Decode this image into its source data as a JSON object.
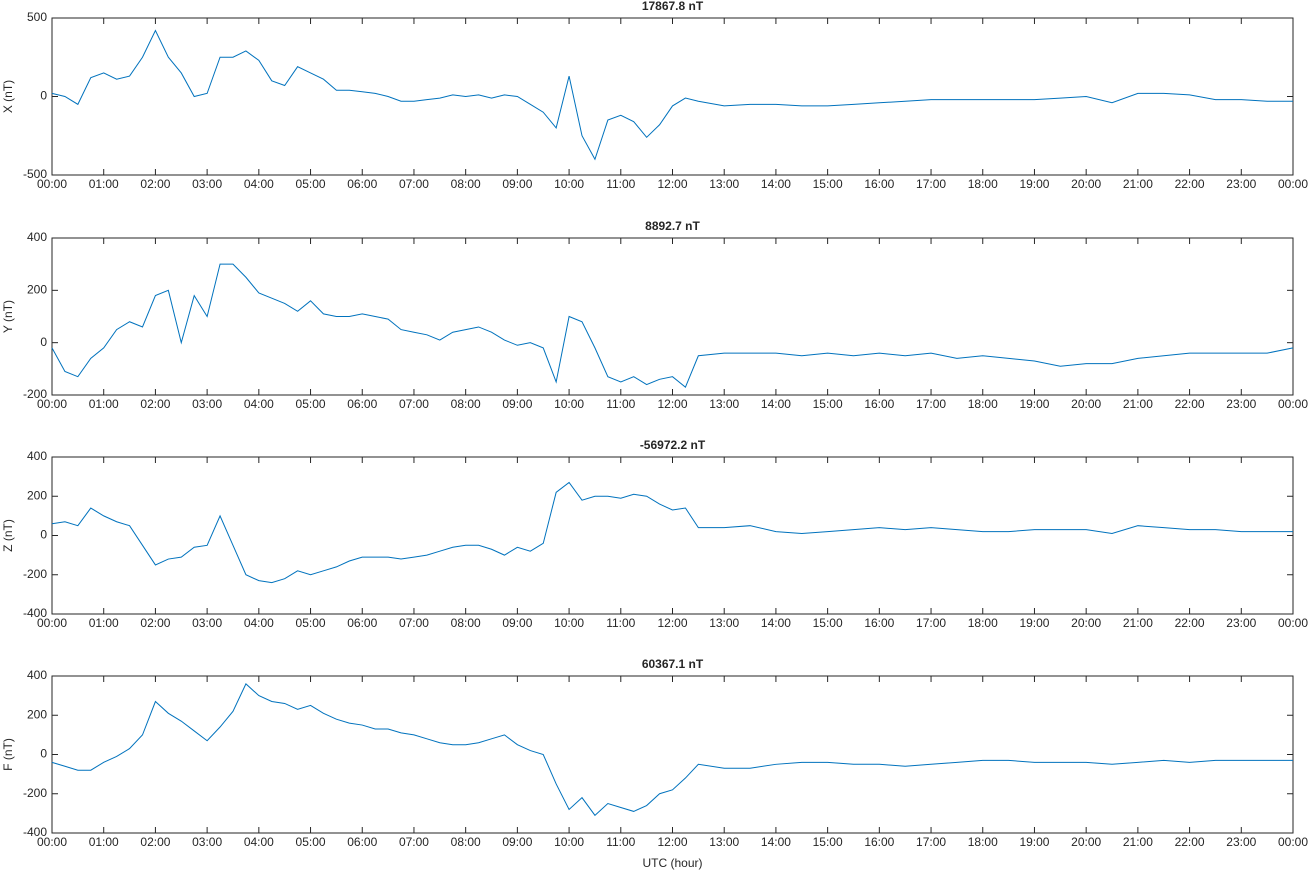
{
  "chart_data": [
    {
      "type": "line",
      "title": "17867.8 nT",
      "ylabel": "X (nT)",
      "x": [
        0,
        0.25,
        0.5,
        0.75,
        1,
        1.25,
        1.5,
        1.75,
        2,
        2.25,
        2.5,
        2.75,
        3,
        3.25,
        3.5,
        3.75,
        4,
        4.25,
        4.5,
        4.75,
        5,
        5.25,
        5.5,
        5.75,
        6,
        6.25,
        6.5,
        6.75,
        7,
        7.25,
        7.5,
        7.75,
        8,
        8.25,
        8.5,
        8.75,
        9,
        9.25,
        9.5,
        9.75,
        10,
        10.25,
        10.5,
        10.75,
        11,
        11.25,
        11.5,
        11.75,
        12,
        12.25,
        12.5,
        13,
        13.5,
        14,
        14.5,
        15,
        15.5,
        16,
        16.5,
        17,
        17.5,
        18,
        18.5,
        19,
        19.5,
        20,
        20.5,
        21,
        21.5,
        22,
        22.5,
        23,
        23.5,
        24
      ],
      "series": [
        {
          "name": "X",
          "color": "#0072bd",
          "values": [
            20,
            0,
            -50,
            120,
            150,
            110,
            130,
            250,
            420,
            250,
            150,
            0,
            20,
            250,
            250,
            290,
            230,
            100,
            70,
            190,
            150,
            110,
            40,
            40,
            30,
            20,
            0,
            -30,
            -30,
            -20,
            -10,
            10,
            0,
            10,
            -10,
            10,
            0,
            -50,
            -100,
            -200,
            130,
            -250,
            -400,
            -150,
            -120,
            -160,
            -260,
            -180,
            -60,
            -10,
            -30,
            -60,
            -50,
            -50,
            -60,
            -60,
            -50,
            -40,
            -30,
            -20,
            -20,
            -20,
            -20,
            -20,
            -10,
            0,
            -40,
            20,
            20,
            10,
            -20,
            -20,
            -30,
            -30
          ]
        }
      ],
      "xlim": [
        0,
        24
      ],
      "ylim": [
        -500,
        500
      ],
      "yticks": [
        -500,
        0,
        500
      ],
      "xticks": [
        {
          "value": 0,
          "label": "00:00"
        },
        {
          "value": 1,
          "label": "01:00"
        },
        {
          "value": 2,
          "label": "02:00"
        },
        {
          "value": 3,
          "label": "03:00"
        },
        {
          "value": 4,
          "label": "04:00"
        },
        {
          "value": 5,
          "label": "05:00"
        },
        {
          "value": 6,
          "label": "06:00"
        },
        {
          "value": 7,
          "label": "07:00"
        },
        {
          "value": 8,
          "label": "08:00"
        },
        {
          "value": 9,
          "label": "09:00"
        },
        {
          "value": 10,
          "label": "10:00"
        },
        {
          "value": 11,
          "label": "11:00"
        },
        {
          "value": 12,
          "label": "12:00"
        },
        {
          "value": 13,
          "label": "13:00"
        },
        {
          "value": 14,
          "label": "14:00"
        },
        {
          "value": 15,
          "label": "15:00"
        },
        {
          "value": 16,
          "label": "16:00"
        },
        {
          "value": 17,
          "label": "17:00"
        },
        {
          "value": 18,
          "label": "18:00"
        },
        {
          "value": 19,
          "label": "19:00"
        },
        {
          "value": 20,
          "label": "20:00"
        },
        {
          "value": 21,
          "label": "21:00"
        },
        {
          "value": 22,
          "label": "22:00"
        },
        {
          "value": 23,
          "label": "23:00"
        },
        {
          "value": 24,
          "label": "00:00"
        }
      ]
    },
    {
      "type": "line",
      "title": "8892.7 nT",
      "ylabel": "Y (nT)",
      "x": [
        0,
        0.25,
        0.5,
        0.75,
        1,
        1.25,
        1.5,
        1.75,
        2,
        2.25,
        2.5,
        2.75,
        3,
        3.25,
        3.5,
        3.75,
        4,
        4.25,
        4.5,
        4.75,
        5,
        5.25,
        5.5,
        5.75,
        6,
        6.25,
        6.5,
        6.75,
        7,
        7.25,
        7.5,
        7.75,
        8,
        8.25,
        8.5,
        8.75,
        9,
        9.25,
        9.5,
        9.75,
        10,
        10.25,
        10.5,
        10.75,
        11,
        11.25,
        11.5,
        11.75,
        12,
        12.25,
        12.5,
        13,
        13.5,
        14,
        14.5,
        15,
        15.5,
        16,
        16.5,
        17,
        17.5,
        18,
        18.5,
        19,
        19.5,
        20,
        20.5,
        21,
        21.5,
        22,
        22.5,
        23,
        23.5,
        24
      ],
      "series": [
        {
          "name": "Y",
          "color": "#0072bd",
          "values": [
            -20,
            -110,
            -130,
            -60,
            -20,
            50,
            80,
            60,
            180,
            200,
            0,
            180,
            100,
            300,
            300,
            250,
            190,
            170,
            150,
            120,
            160,
            110,
            100,
            100,
            110,
            100,
            90,
            50,
            40,
            30,
            10,
            40,
            50,
            60,
            40,
            10,
            -10,
            0,
            -20,
            -150,
            100,
            80,
            -20,
            -130,
            -150,
            -130,
            -160,
            -140,
            -130,
            -170,
            -50,
            -40,
            -40,
            -40,
            -50,
            -40,
            -50,
            -40,
            -50,
            -40,
            -60,
            -50,
            -60,
            -70,
            -90,
            -80,
            -80,
            -60,
            -50,
            -40,
            -40,
            -40,
            -40,
            -20
          ]
        }
      ],
      "xlim": [
        0,
        24
      ],
      "ylim": [
        -200,
        400
      ],
      "yticks": [
        -200,
        0,
        200,
        400
      ],
      "xticks": [
        {
          "value": 0,
          "label": "00:00"
        },
        {
          "value": 1,
          "label": "01:00"
        },
        {
          "value": 2,
          "label": "02:00"
        },
        {
          "value": 3,
          "label": "03:00"
        },
        {
          "value": 4,
          "label": "04:00"
        },
        {
          "value": 5,
          "label": "05:00"
        },
        {
          "value": 6,
          "label": "06:00"
        },
        {
          "value": 7,
          "label": "07:00"
        },
        {
          "value": 8,
          "label": "08:00"
        },
        {
          "value": 9,
          "label": "09:00"
        },
        {
          "value": 10,
          "label": "10:00"
        },
        {
          "value": 11,
          "label": "11:00"
        },
        {
          "value": 12,
          "label": "12:00"
        },
        {
          "value": 13,
          "label": "13:00"
        },
        {
          "value": 14,
          "label": "14:00"
        },
        {
          "value": 15,
          "label": "15:00"
        },
        {
          "value": 16,
          "label": "16:00"
        },
        {
          "value": 17,
          "label": "17:00"
        },
        {
          "value": 18,
          "label": "18:00"
        },
        {
          "value": 19,
          "label": "19:00"
        },
        {
          "value": 20,
          "label": "20:00"
        },
        {
          "value": 21,
          "label": "21:00"
        },
        {
          "value": 22,
          "label": "22:00"
        },
        {
          "value": 23,
          "label": "23:00"
        },
        {
          "value": 24,
          "label": "00:00"
        }
      ]
    },
    {
      "type": "line",
      "title": "-56972.2 nT",
      "ylabel": "Z (nT)",
      "x": [
        0,
        0.25,
        0.5,
        0.75,
        1,
        1.25,
        1.5,
        1.75,
        2,
        2.25,
        2.5,
        2.75,
        3,
        3.25,
        3.5,
        3.75,
        4,
        4.25,
        4.5,
        4.75,
        5,
        5.25,
        5.5,
        5.75,
        6,
        6.25,
        6.5,
        6.75,
        7,
        7.25,
        7.5,
        7.75,
        8,
        8.25,
        8.5,
        8.75,
        9,
        9.25,
        9.5,
        9.75,
        10,
        10.25,
        10.5,
        10.75,
        11,
        11.25,
        11.5,
        11.75,
        12,
        12.25,
        12.5,
        13,
        13.5,
        14,
        14.5,
        15,
        15.5,
        16,
        16.5,
        17,
        17.5,
        18,
        18.5,
        19,
        19.5,
        20,
        20.5,
        21,
        21.5,
        22,
        22.5,
        23,
        23.5,
        24
      ],
      "series": [
        {
          "name": "Z",
          "color": "#0072bd",
          "values": [
            60,
            70,
            50,
            140,
            100,
            70,
            50,
            -50,
            -150,
            -120,
            -110,
            -60,
            -50,
            100,
            -50,
            -200,
            -230,
            -240,
            -220,
            -180,
            -200,
            -180,
            -160,
            -130,
            -110,
            -110,
            -110,
            -120,
            -110,
            -100,
            -80,
            -60,
            -50,
            -50,
            -70,
            -100,
            -60,
            -80,
            -40,
            220,
            270,
            180,
            200,
            200,
            190,
            210,
            200,
            160,
            130,
            140,
            40,
            40,
            50,
            20,
            10,
            20,
            30,
            40,
            30,
            40,
            30,
            20,
            20,
            30,
            30,
            30,
            10,
            50,
            40,
            30,
            30,
            20,
            20,
            20
          ]
        }
      ],
      "xlim": [
        0,
        24
      ],
      "ylim": [
        -400,
        400
      ],
      "yticks": [
        -400,
        -200,
        0,
        200,
        400
      ],
      "xticks": [
        {
          "value": 0,
          "label": "00:00"
        },
        {
          "value": 1,
          "label": "01:00"
        },
        {
          "value": 2,
          "label": "02:00"
        },
        {
          "value": 3,
          "label": "03:00"
        },
        {
          "value": 4,
          "label": "04:00"
        },
        {
          "value": 5,
          "label": "05:00"
        },
        {
          "value": 6,
          "label": "06:00"
        },
        {
          "value": 7,
          "label": "07:00"
        },
        {
          "value": 8,
          "label": "08:00"
        },
        {
          "value": 9,
          "label": "09:00"
        },
        {
          "value": 10,
          "label": "10:00"
        },
        {
          "value": 11,
          "label": "11:00"
        },
        {
          "value": 12,
          "label": "12:00"
        },
        {
          "value": 13,
          "label": "13:00"
        },
        {
          "value": 14,
          "label": "14:00"
        },
        {
          "value": 15,
          "label": "15:00"
        },
        {
          "value": 16,
          "label": "16:00"
        },
        {
          "value": 17,
          "label": "17:00"
        },
        {
          "value": 18,
          "label": "18:00"
        },
        {
          "value": 19,
          "label": "19:00"
        },
        {
          "value": 20,
          "label": "20:00"
        },
        {
          "value": 21,
          "label": "21:00"
        },
        {
          "value": 22,
          "label": "22:00"
        },
        {
          "value": 23,
          "label": "23:00"
        },
        {
          "value": 24,
          "label": "00:00"
        }
      ]
    },
    {
      "type": "line",
      "title": "60367.1 nT",
      "ylabel": "F (nT)",
      "xlabel": "UTC (hour)",
      "x": [
        0,
        0.25,
        0.5,
        0.75,
        1,
        1.25,
        1.5,
        1.75,
        2,
        2.25,
        2.5,
        2.75,
        3,
        3.25,
        3.5,
        3.75,
        4,
        4.25,
        4.5,
        4.75,
        5,
        5.25,
        5.5,
        5.75,
        6,
        6.25,
        6.5,
        6.75,
        7,
        7.25,
        7.5,
        7.75,
        8,
        8.25,
        8.5,
        8.75,
        9,
        9.25,
        9.5,
        9.75,
        10,
        10.25,
        10.5,
        10.75,
        11,
        11.25,
        11.5,
        11.75,
        12,
        12.25,
        12.5,
        13,
        13.5,
        14,
        14.5,
        15,
        15.5,
        16,
        16.5,
        17,
        17.5,
        18,
        18.5,
        19,
        19.5,
        20,
        20.5,
        21,
        21.5,
        22,
        22.5,
        23,
        23.5,
        24
      ],
      "series": [
        {
          "name": "F",
          "color": "#0072bd",
          "values": [
            -40,
            -60,
            -80,
            -80,
            -40,
            -10,
            30,
            100,
            270,
            210,
            170,
            120,
            70,
            140,
            220,
            360,
            300,
            270,
            260,
            230,
            250,
            210,
            180,
            160,
            150,
            130,
            130,
            110,
            100,
            80,
            60,
            50,
            50,
            60,
            80,
            100,
            50,
            20,
            0,
            -150,
            -280,
            -220,
            -310,
            -250,
            -270,
            -290,
            -260,
            -200,
            -180,
            -120,
            -50,
            -70,
            -70,
            -50,
            -40,
            -40,
            -50,
            -50,
            -60,
            -50,
            -40,
            -30,
            -30,
            -40,
            -40,
            -40,
            -50,
            -40,
            -30,
            -40,
            -30,
            -30,
            -30,
            -30
          ]
        }
      ],
      "xlim": [
        0,
        24
      ],
      "ylim": [
        -400,
        400
      ],
      "yticks": [
        -400,
        -200,
        0,
        200,
        400
      ],
      "xticks": [
        {
          "value": 0,
          "label": "00:00"
        },
        {
          "value": 1,
          "label": "01:00"
        },
        {
          "value": 2,
          "label": "02:00"
        },
        {
          "value": 3,
          "label": "03:00"
        },
        {
          "value": 4,
          "label": "04:00"
        },
        {
          "value": 5,
          "label": "05:00"
        },
        {
          "value": 6,
          "label": "06:00"
        },
        {
          "value": 7,
          "label": "07:00"
        },
        {
          "value": 8,
          "label": "08:00"
        },
        {
          "value": 9,
          "label": "09:00"
        },
        {
          "value": 10,
          "label": "10:00"
        },
        {
          "value": 11,
          "label": "11:00"
        },
        {
          "value": 12,
          "label": "12:00"
        },
        {
          "value": 13,
          "label": "13:00"
        },
        {
          "value": 14,
          "label": "14:00"
        },
        {
          "value": 15,
          "label": "15:00"
        },
        {
          "value": 16,
          "label": "16:00"
        },
        {
          "value": 17,
          "label": "17:00"
        },
        {
          "value": 18,
          "label": "18:00"
        },
        {
          "value": 19,
          "label": "19:00"
        },
        {
          "value": 20,
          "label": "20:00"
        },
        {
          "value": 21,
          "label": "21:00"
        },
        {
          "value": 22,
          "label": "22:00"
        },
        {
          "value": 23,
          "label": "23:00"
        },
        {
          "value": 24,
          "label": "00:00"
        }
      ]
    }
  ]
}
